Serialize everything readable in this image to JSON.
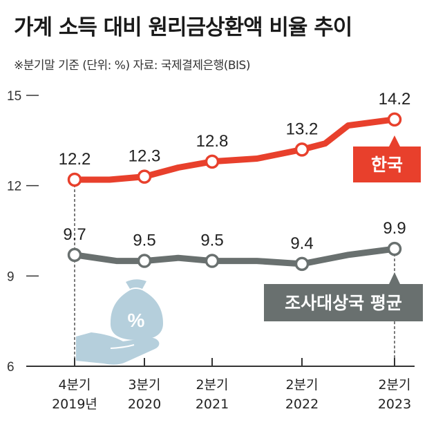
{
  "colors": {
    "korea": "#e8402c",
    "average": "#69706f",
    "gray_label": "#444444",
    "illustration": "#b5cfdc"
  },
  "header": {
    "title": "가계 소득 대비 원리금상환액 비율 추이",
    "subtitle": "※분기말 기준 (단위: %) 자료: 국제결제은행(BIS)"
  },
  "icons": {
    "money_bag": "money-bag-percent-icon",
    "hand": "open-hand-icon"
  },
  "bag_symbol": "%",
  "chart_data": {
    "type": "line",
    "categories": [
      [
        "4분기",
        "2019년"
      ],
      [
        "3분기",
        "2020"
      ],
      [
        "2분기",
        "2021"
      ],
      [
        "2분기",
        "2022"
      ],
      [
        "2분기",
        "2023"
      ]
    ],
    "ylim": [
      6,
      15
    ],
    "yticks": [
      6,
      9,
      12,
      15
    ],
    "series": [
      {
        "name": "한국",
        "x": [
          0,
          0.5,
          1,
          1.5,
          2,
          2.5,
          3,
          3.25,
          3.5,
          4
        ],
        "values": [
          12.2,
          12.2,
          12.3,
          12.6,
          12.8,
          12.9,
          13.2,
          13.4,
          14.0,
          14.2
        ],
        "labeled_index": [
          0,
          2,
          4,
          6,
          9
        ],
        "labels": [
          "12.2",
          "12.3",
          "12.8",
          "13.2",
          "14.2"
        ]
      },
      {
        "name": "조사대상국 평균",
        "x": [
          0,
          0.6,
          1,
          1.5,
          2,
          2.5,
          3,
          3.5,
          4
        ],
        "values": [
          9.7,
          9.5,
          9.5,
          9.6,
          9.5,
          9.5,
          9.4,
          9.7,
          9.9
        ],
        "labeled_index": [
          0,
          2,
          4,
          6,
          8
        ],
        "labels": [
          "9.7",
          "9.5",
          "9.5",
          "9.4",
          "9.9"
        ]
      }
    ]
  }
}
